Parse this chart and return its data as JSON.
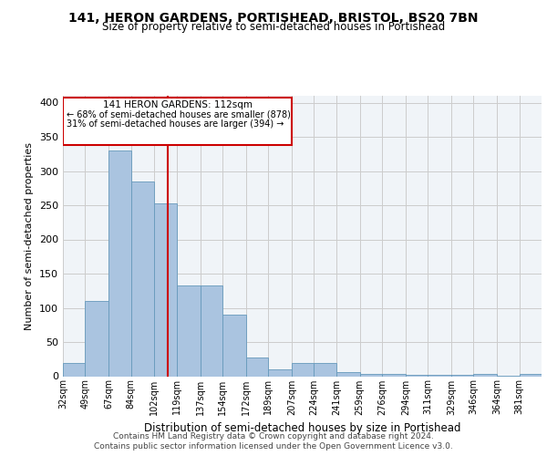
{
  "title1": "141, HERON GARDENS, PORTISHEAD, BRISTOL, BS20 7BN",
  "title2": "Size of property relative to semi-detached houses in Portishead",
  "xlabel": "Distribution of semi-detached houses by size in Portishead",
  "ylabel": "Number of semi-detached properties",
  "footer1": "Contains HM Land Registry data © Crown copyright and database right 2024.",
  "footer2": "Contains public sector information licensed under the Open Government Licence v3.0.",
  "property_label": "141 HERON GARDENS: 112sqm",
  "pct_smaller": 68,
  "count_smaller": 878,
  "pct_larger": 31,
  "count_larger": 394,
  "bin_labels": [
    "32sqm",
    "49sqm",
    "67sqm",
    "84sqm",
    "102sqm",
    "119sqm",
    "137sqm",
    "154sqm",
    "172sqm",
    "189sqm",
    "207sqm",
    "224sqm",
    "241sqm",
    "259sqm",
    "276sqm",
    "294sqm",
    "311sqm",
    "329sqm",
    "346sqm",
    "364sqm",
    "381sqm"
  ],
  "bin_edges": [
    32,
    49,
    67,
    84,
    102,
    119,
    137,
    154,
    172,
    189,
    207,
    224,
    241,
    259,
    276,
    294,
    311,
    329,
    346,
    364,
    381,
    398
  ],
  "bar_heights": [
    20,
    110,
    330,
    285,
    253,
    133,
    133,
    90,
    27,
    10,
    20,
    20,
    6,
    3,
    3,
    2,
    2,
    2,
    3,
    1,
    4
  ],
  "bar_color": "#aac4e0",
  "bar_edge_color": "#6699bb",
  "vline_color": "#cc0000",
  "vline_x": 112,
  "annotation_box_color": "#cc0000",
  "bg_color": "#f0f4f8",
  "grid_color": "#cccccc",
  "ylim": [
    0,
    410
  ],
  "yticks": [
    0,
    50,
    100,
    150,
    200,
    250,
    300,
    350,
    400
  ]
}
